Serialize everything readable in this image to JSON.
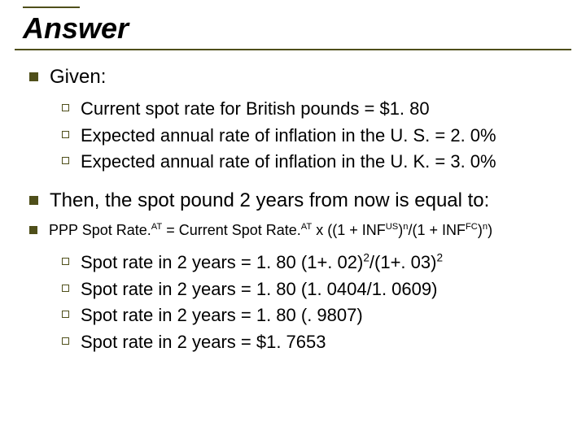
{
  "colors": {
    "accent": "#4f4f1a",
    "background": "#ffffff",
    "text": "#000000"
  },
  "title": "Answer",
  "given": {
    "label": "Given:",
    "items": [
      "Current spot rate for British pounds = $1. 80",
      "Expected annual rate of inflation in the U. S. = 2. 0%",
      "Expected annual rate of inflation in the U. K. = 3. 0%"
    ]
  },
  "then": {
    "label": "Then, the spot pound 2 years from now is equal to:"
  },
  "formula": {
    "p1": "PPP Spot Rate.",
    "sup1": "AT",
    "p2": " = Current Spot Rate.",
    "sup2": "AT",
    "p3": " x ((1 + INF",
    "sup3": "US",
    "p4": ")",
    "sup4": "n",
    "p5": "/(1 + INF",
    "sup5": "FC",
    "p6": ")",
    "sup6": "n",
    "p7": ")"
  },
  "calc": {
    "line1": {
      "a": "Spot rate in 2 years = 1. 80 (1+. 02)",
      "s1": "2",
      "b": "/(1+. 03)",
      "s2": "2"
    },
    "line2": "Spot rate in 2 years = 1. 80 (1. 0404/1. 0609)",
    "line3": "Spot rate in 2 years = 1. 80 (. 9807)",
    "line4": "Spot rate in 2 years = $1. 7653"
  }
}
